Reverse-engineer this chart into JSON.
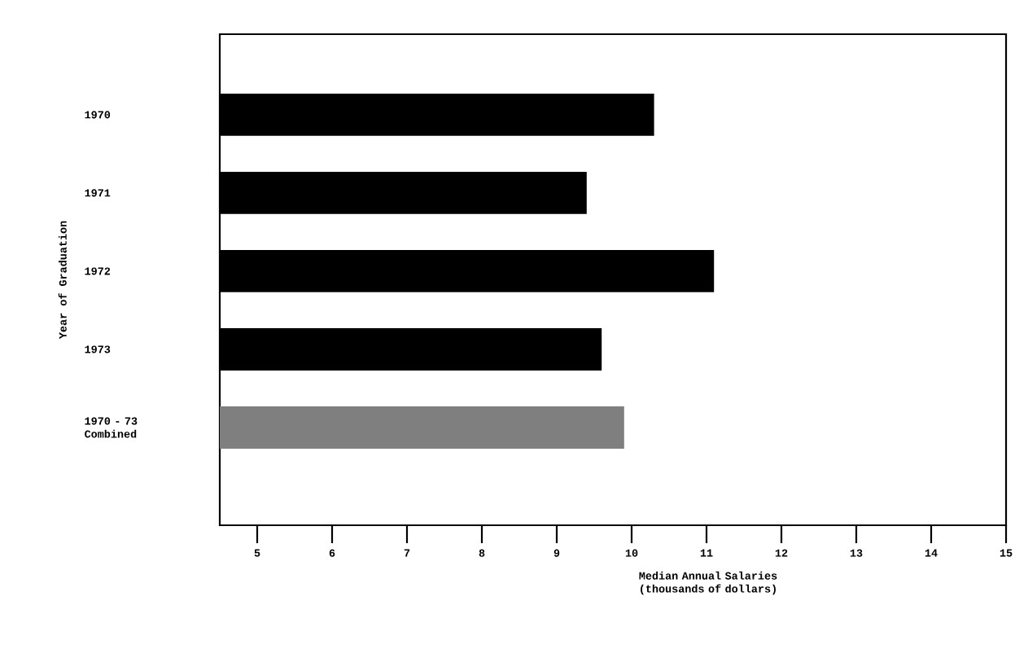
{
  "chart_data": {
    "type": "bar",
    "orientation": "horizontal",
    "ylabel": "Year of Graduation",
    "xlabel": "Median Annual Salaries (thousands of dollars)",
    "categories": [
      "1970",
      "1971",
      "1972",
      "1973",
      "1970 - 73 Combined"
    ],
    "values": [
      10.3,
      9.4,
      11.1,
      9.6,
      9.9
    ],
    "colors": [
      "#000000",
      "#000000",
      "#000000",
      "#000000",
      "#7f7f7f"
    ],
    "xlim": [
      4.5,
      15
    ],
    "xticks": [
      5,
      6,
      7,
      8,
      9,
      10,
      11,
      12,
      13,
      14,
      15
    ],
    "grid": false
  }
}
